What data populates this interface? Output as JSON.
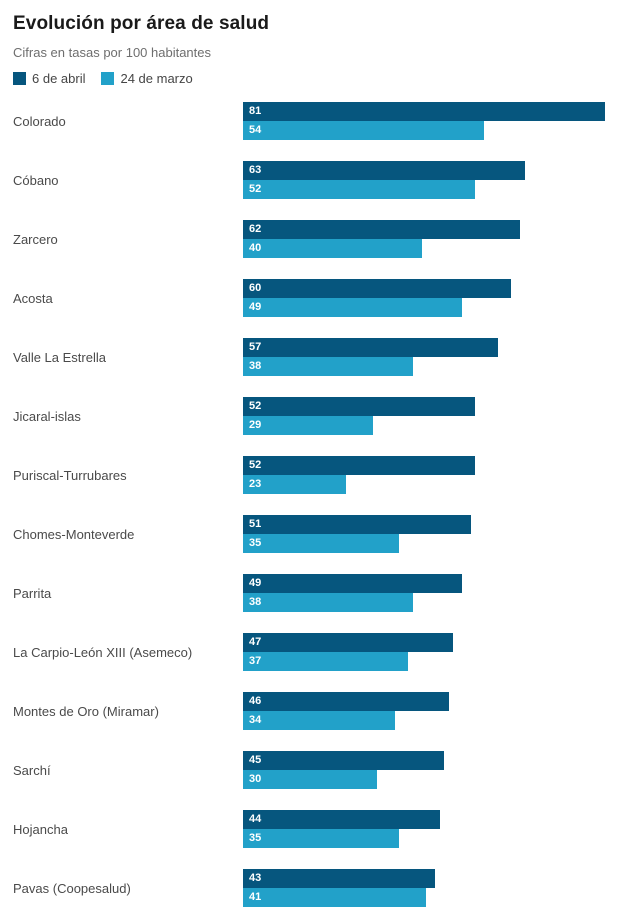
{
  "chart": {
    "title": "Evolución por área de salud",
    "subtitle": "Cifras en tasas por 100 habitantes"
  },
  "chart_data": {
    "type": "bar",
    "orientation": "horizontal",
    "title": "Evolución por área de salud",
    "subtitle": "Cifras en tasas por 100 habitantes",
    "legend_position": "top",
    "grid": false,
    "xlim": [
      0,
      81
    ],
    "value_labels": "inside-left",
    "categories": [
      "Colorado",
      "Cóbano",
      "Zarcero",
      "Acosta",
      "Valle La Estrella",
      "Jicaral-islas",
      "Puriscal-Turrubares",
      "Chomes-Monteverde",
      "Parrita",
      "La Carpio-León XIII (Asemeco)",
      "Montes de Oro (Miramar)",
      "Sarchí",
      "Hojancha",
      "Pavas (Coopesalud)"
    ],
    "series": [
      {
        "name": "6 de abril",
        "color": "#06567e",
        "values": [
          81,
          63,
          62,
          60,
          57,
          52,
          52,
          51,
          49,
          47,
          46,
          45,
          44,
          43
        ]
      },
      {
        "name": "24 de marzo",
        "color": "#22a1c9",
        "values": [
          54,
          52,
          40,
          49,
          38,
          29,
          23,
          35,
          38,
          37,
          34,
          30,
          35,
          41
        ]
      }
    ]
  }
}
